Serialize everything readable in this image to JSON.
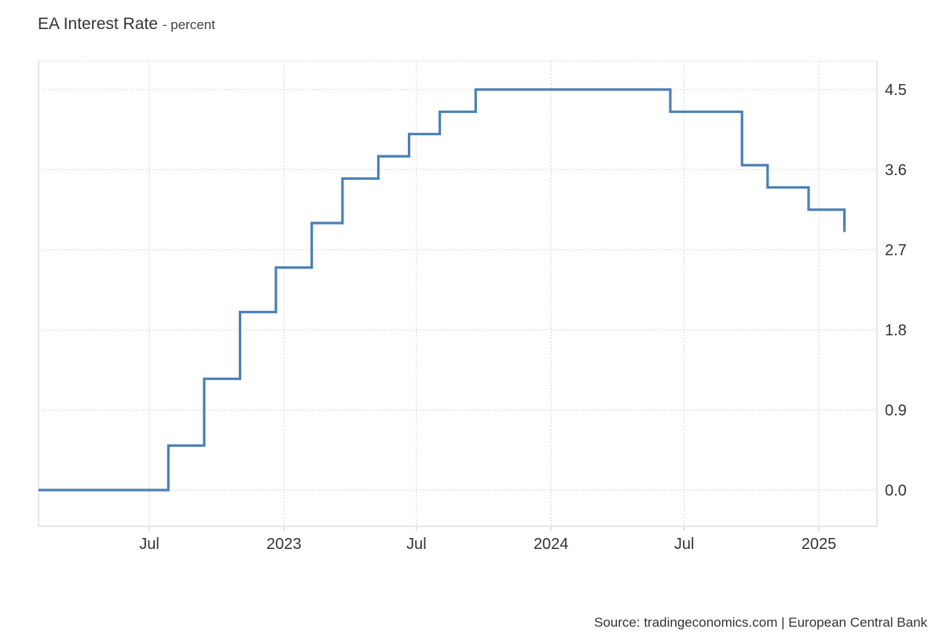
{
  "header": {
    "title": "EA Interest Rate",
    "subtitle": "- percent"
  },
  "footer": {
    "source": "Source: tradingeconomics.com | European Central Bank"
  },
  "colors": {
    "line": "#4a7fb8",
    "grid": "#d6d6d6",
    "axis": "#cccccc"
  },
  "chart_data": {
    "type": "line",
    "title": "EA Interest Rate",
    "subtitle": "percent",
    "step": true,
    "x_range": [
      "2022-02-01",
      "2025-04-01"
    ],
    "ylim": [
      -0.8,
      4.9
    ],
    "y_ticks": [
      0.0,
      0.9,
      1.8,
      2.7,
      3.6,
      4.5
    ],
    "y_tick_labels": [
      "0.0",
      "0.9",
      "1.8",
      "2.7",
      "3.6",
      "4.5"
    ],
    "x_ticks": [
      {
        "date": "2022-07-01",
        "label": "Jul"
      },
      {
        "date": "2023-01-01",
        "label": "2023"
      },
      {
        "date": "2023-07-01",
        "label": "Jul"
      },
      {
        "date": "2024-01-01",
        "label": "2024"
      },
      {
        "date": "2024-07-01",
        "label": "Jul"
      },
      {
        "date": "2025-01-01",
        "label": "2025"
      }
    ],
    "grid": true,
    "y_axis_side": "right",
    "series": [
      {
        "points": [
          [
            "2022-02-01",
            0.0
          ],
          [
            "2022-07-27",
            0.5
          ],
          [
            "2022-09-14",
            1.25
          ],
          [
            "2022-11-02",
            2.0
          ],
          [
            "2022-12-21",
            2.5
          ],
          [
            "2023-02-08",
            3.0
          ],
          [
            "2023-03-22",
            3.5
          ],
          [
            "2023-05-10",
            3.75
          ],
          [
            "2023-06-21",
            4.0
          ],
          [
            "2023-08-02",
            4.25
          ],
          [
            "2023-09-20",
            4.5
          ],
          [
            "2024-06-12",
            4.25
          ],
          [
            "2024-09-18",
            3.65
          ],
          [
            "2024-10-23",
            3.4
          ],
          [
            "2024-12-18",
            3.15
          ],
          [
            "2025-02-05",
            2.9
          ]
        ]
      }
    ]
  }
}
